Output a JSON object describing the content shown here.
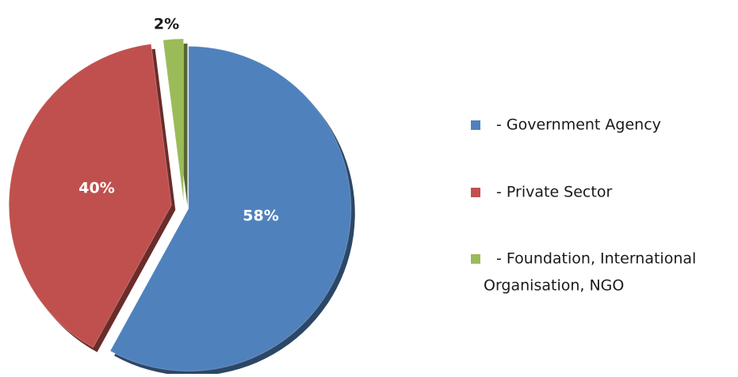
{
  "chart_data": {
    "type": "pie",
    "title": "",
    "categories": [
      "- Government Agency",
      "- Private Sector",
      "- Foundation, International Organisation, NGO"
    ],
    "values": [
      58,
      40,
      2
    ],
    "value_labels": [
      "58%",
      "40%",
      "2%"
    ],
    "colors": [
      "#4f81bd",
      "#c0504d",
      "#9bbb59"
    ],
    "label_colors": [
      "#ffffff",
      "#ffffff",
      "#1a1a1a"
    ],
    "exploded": true,
    "shadow_3d": true,
    "legend_position": "right",
    "legend_lines": [
      [
        "- Government Agency"
      ],
      [
        "- Private Sector"
      ],
      [
        "- Foundation, International",
        "Organisation, NGO"
      ]
    ]
  }
}
